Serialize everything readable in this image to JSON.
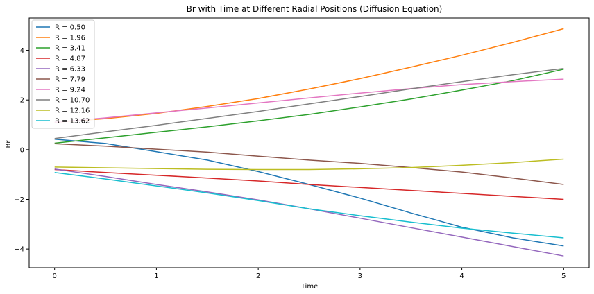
{
  "chart_data": {
    "type": "line",
    "title": "Br with Time at Different Radial Positions (Diffusion Equation)",
    "xlabel": "Time",
    "ylabel": "Br",
    "xlim": [
      -0.25,
      5.25
    ],
    "ylim": [
      -4.75,
      5.3
    ],
    "xticks": [
      0,
      1,
      2,
      3,
      4,
      5
    ],
    "yticks": [
      -4,
      -2,
      0,
      2,
      4
    ],
    "grid": false,
    "legend_position": "top-left",
    "x": [
      0,
      0.5,
      1,
      1.5,
      2,
      2.5,
      3,
      3.5,
      4,
      4.5,
      5
    ],
    "series": [
      {
        "name": "R = 0.50",
        "color": "#1f77b4",
        "values": [
          0.42,
          0.25,
          -0.08,
          -0.42,
          -0.88,
          -1.4,
          -1.95,
          -2.55,
          -3.12,
          -3.55,
          -3.88
        ]
      },
      {
        "name": "R = 1.96",
        "color": "#ff7f0e",
        "values": [
          1.1,
          1.25,
          1.46,
          1.74,
          2.06,
          2.44,
          2.86,
          3.32,
          3.8,
          4.32,
          4.87
        ]
      },
      {
        "name": "R = 3.41",
        "color": "#2ca02c",
        "values": [
          0.26,
          0.48,
          0.7,
          0.92,
          1.16,
          1.42,
          1.72,
          2.04,
          2.4,
          2.78,
          3.24
        ]
      },
      {
        "name": "R = 4.87",
        "color": "#d62728",
        "values": [
          -0.8,
          -0.92,
          -1.03,
          -1.14,
          -1.26,
          -1.4,
          -1.52,
          -1.64,
          -1.76,
          -1.88,
          -2.0
        ]
      },
      {
        "name": "R = 6.33",
        "color": "#9467bd",
        "values": [
          -0.78,
          -1.08,
          -1.4,
          -1.7,
          -2.02,
          -2.38,
          -2.76,
          -3.14,
          -3.52,
          -3.9,
          -4.28
        ]
      },
      {
        "name": "R = 7.79",
        "color": "#8c564b",
        "values": [
          0.24,
          0.14,
          0.02,
          -0.1,
          -0.26,
          -0.42,
          -0.55,
          -0.72,
          -0.9,
          -1.14,
          -1.4
        ]
      },
      {
        "name": "R = 9.24",
        "color": "#e377c2",
        "values": [
          1.1,
          1.28,
          1.48,
          1.68,
          1.88,
          2.08,
          2.28,
          2.46,
          2.62,
          2.74,
          2.84
        ]
      },
      {
        "name": "R = 10.70",
        "color": "#7f7f7f",
        "values": [
          0.45,
          0.72,
          0.98,
          1.26,
          1.54,
          1.84,
          2.14,
          2.45,
          2.74,
          3.02,
          3.27
        ]
      },
      {
        "name": "R = 12.16",
        "color": "#bcbd22",
        "values": [
          -0.7,
          -0.73,
          -0.76,
          -0.79,
          -0.8,
          -0.8,
          -0.77,
          -0.72,
          -0.63,
          -0.52,
          -0.38
        ]
      },
      {
        "name": "R = 13.62",
        "color": "#17becf",
        "values": [
          -0.92,
          -1.18,
          -1.46,
          -1.74,
          -2.05,
          -2.38,
          -2.66,
          -2.92,
          -3.16,
          -3.36,
          -3.55
        ]
      }
    ]
  }
}
